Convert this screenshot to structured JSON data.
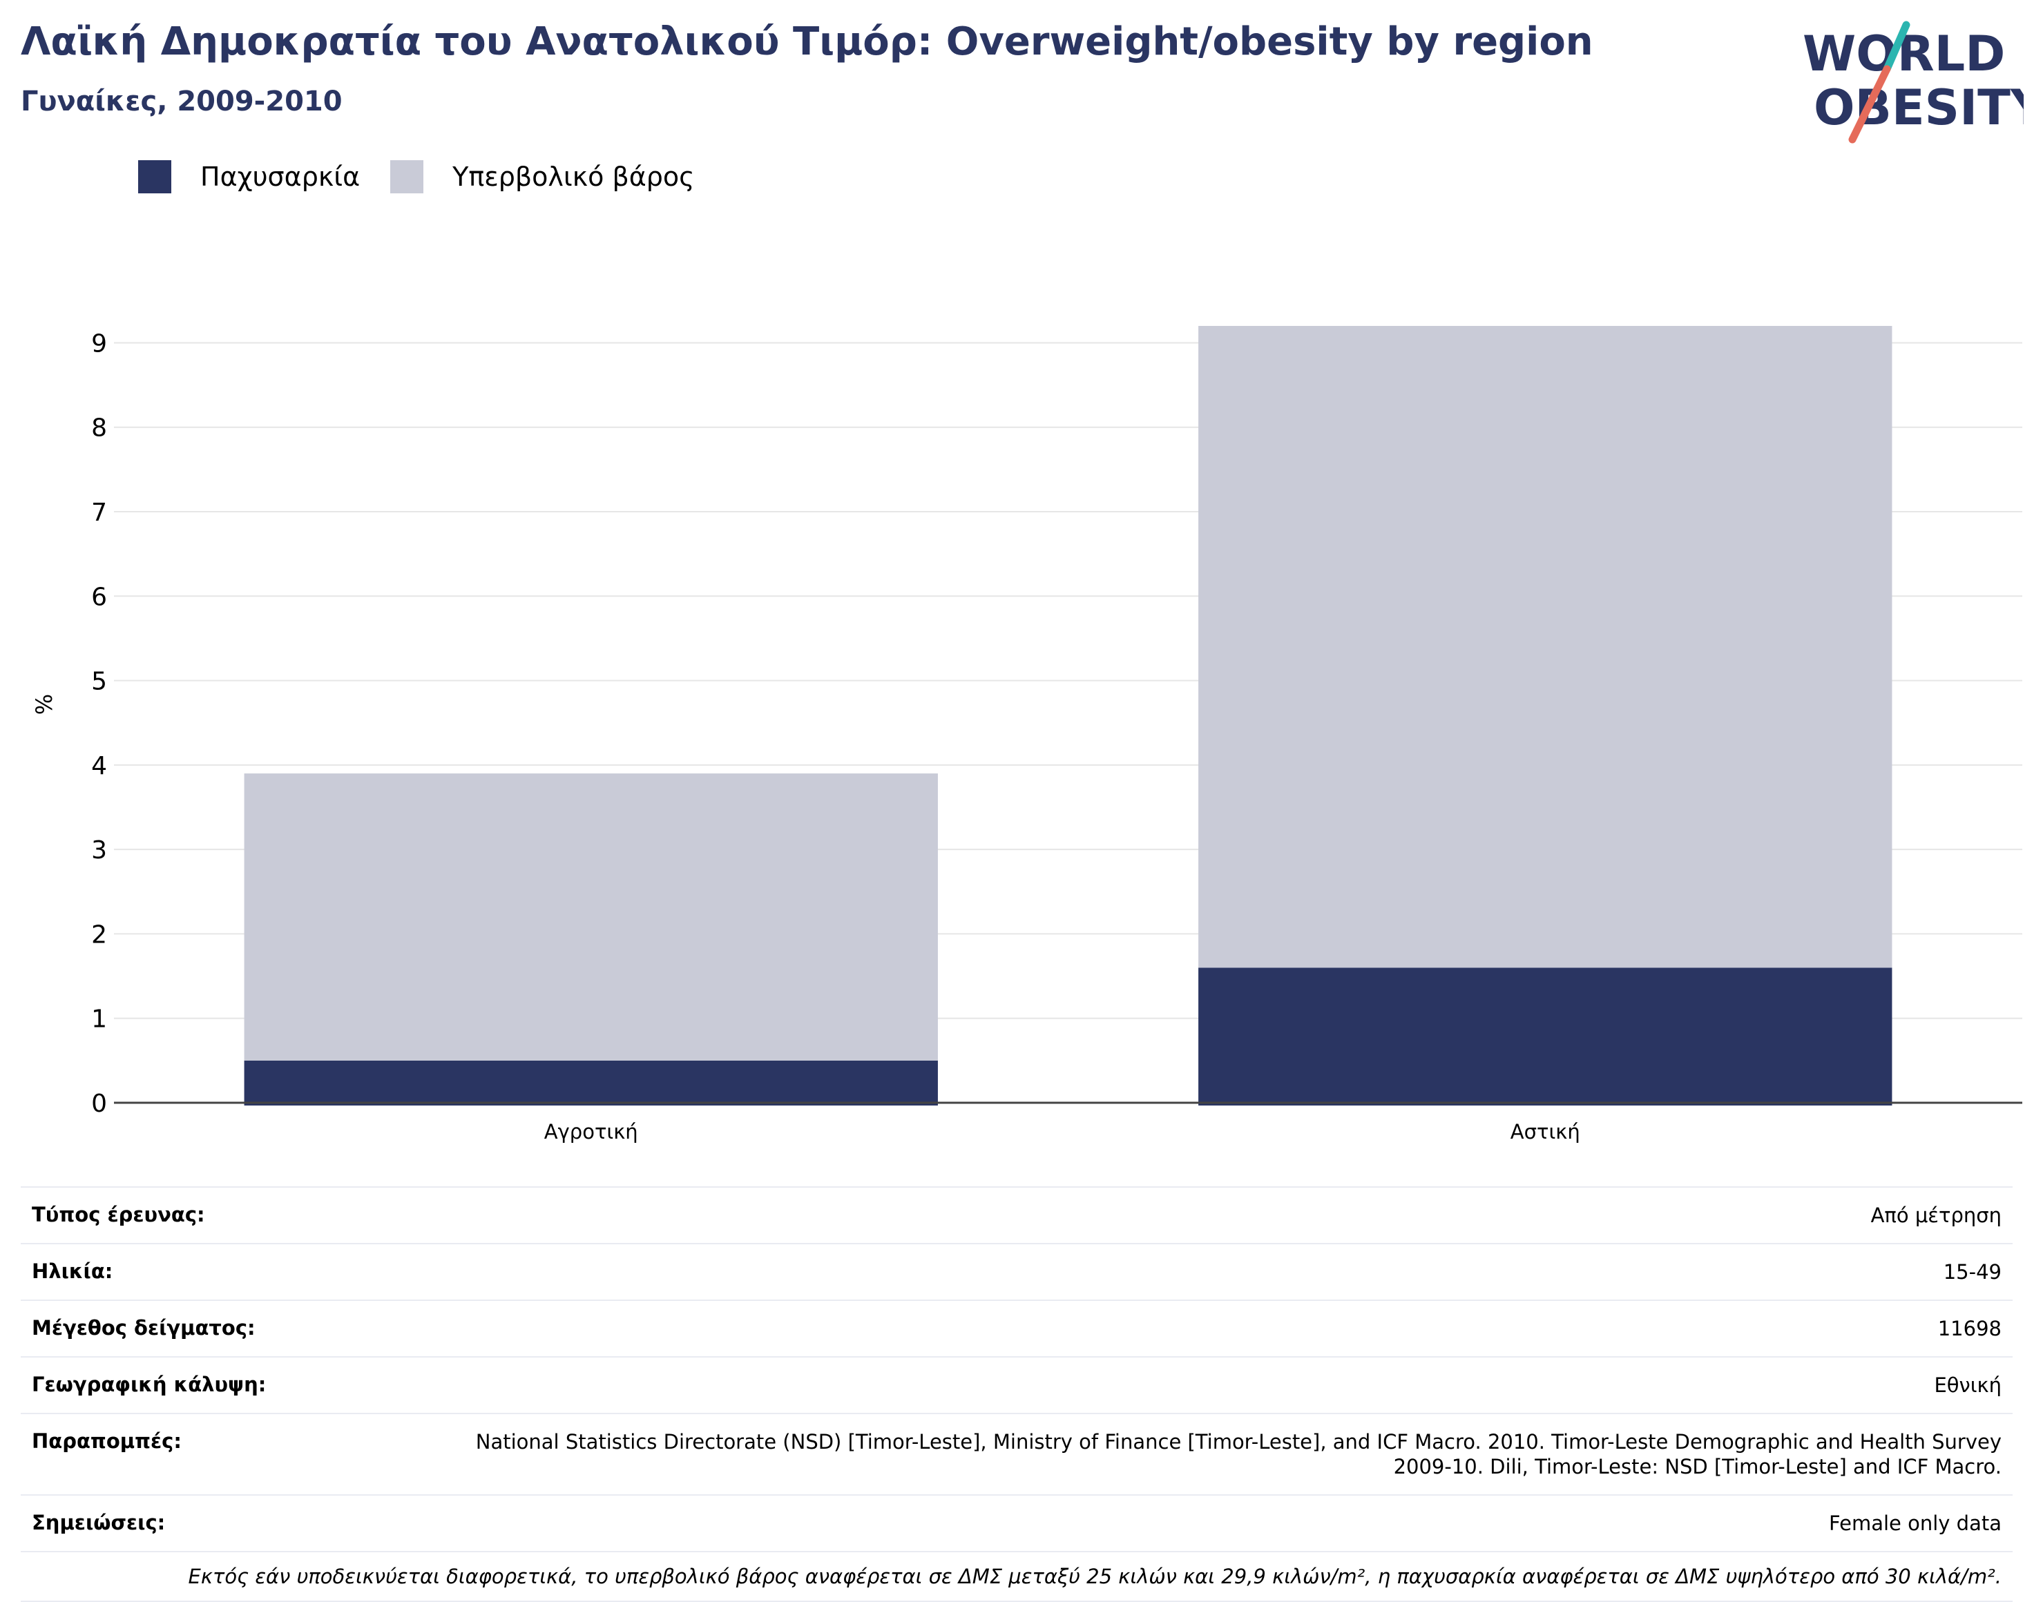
{
  "header": {
    "title": "Λαϊκή Δημοκρατία του Ανατολικού Τιμόρ: Overweight/obesity by region",
    "subtitle": "Γυναίκες, 2009-2010"
  },
  "logo": {
    "line1": "WORLD",
    "line2": "OBESITY"
  },
  "colors": {
    "obesity": "#2a3562",
    "overweight": "#c9cbd7",
    "title": "#2a3562"
  },
  "chart_data": {
    "type": "bar",
    "stacked": true,
    "categories": [
      "Αγροτική",
      "Αστική"
    ],
    "series": [
      {
        "name": "Παχυσαρκία",
        "values": [
          0.5,
          1.6
        ]
      },
      {
        "name": "Υπερβολικό βάρος",
        "values": [
          3.4,
          7.6
        ]
      }
    ],
    "ylabel": "%",
    "ylim": [
      0,
      9.2
    ],
    "yticks": [
      0,
      1,
      2,
      3,
      4,
      5,
      6,
      7,
      8,
      9
    ],
    "grid": true,
    "legend": "top-left"
  },
  "meta": {
    "rows": [
      {
        "label": "Τύπος έρευνας:",
        "value": "Από μέτρηση"
      },
      {
        "label": "Ηλικία:",
        "value": "15-49"
      },
      {
        "label": "Μέγεθος δείγματος:",
        "value": "11698"
      },
      {
        "label": "Γεωγραφική κάλυψη:",
        "value": "Εθνική"
      },
      {
        "label": "Παραπομπές:",
        "value": "National Statistics Directorate (NSD) [Timor-Leste], Ministry of Finance [Timor-Leste], and ICF Macro. 2010. Timor-Leste Demographic and Health Survey 2009-10. Dili, Timor-Leste: NSD [Timor-Leste] and ICF Macro."
      },
      {
        "label": "Σημειώσεις:",
        "value": "Female only data"
      }
    ],
    "footnote": "Εκτός εάν υποδεικνύεται διαφορετικά, το υπερβολικό βάρος αναφέρεται σε ΔΜΣ μεταξύ 25 κιλών και 29,9 κιλών/m², η παχυσαρκία αναφέρεται σε ΔΜΣ υψηλότερο από 30 κιλά/m²."
  }
}
